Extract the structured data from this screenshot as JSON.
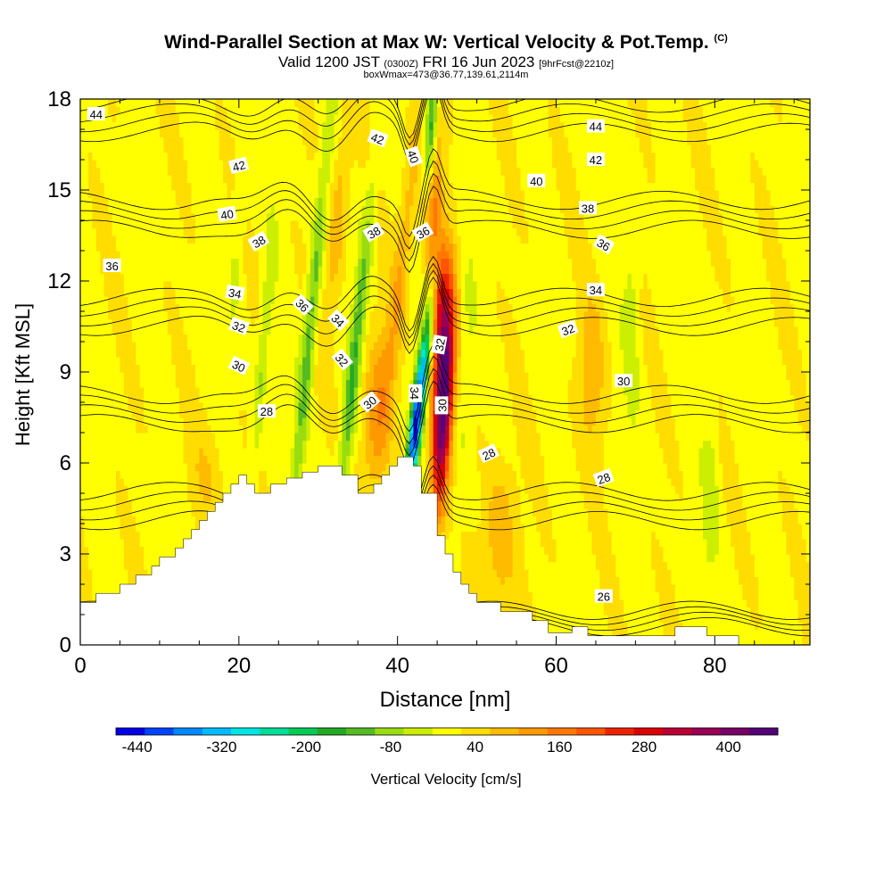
{
  "header": {
    "title": "Wind-Parallel Section at Max W: Vertical Velocity & Pot.Temp.",
    "title_mark": "(C)",
    "valid_prefix": "Valid 1200 JST",
    "valid_utc": "(0300Z)",
    "valid_date": "FRI 16 Jun 2023",
    "forecast": "[9hrFcst@2210z]",
    "boxinfo": "boxWmax=473@36.77,139.61,2114m"
  },
  "chart_data": {
    "type": "heatmap",
    "xlabel": "Distance [nm]",
    "ylabel": "Height [Kft MSL]",
    "xlim": [
      0,
      92
    ],
    "ylim": [
      0,
      18
    ],
    "x_ticks": [
      0,
      20,
      40,
      60,
      80
    ],
    "y_ticks": [
      0,
      3,
      6,
      9,
      12,
      15,
      18
    ],
    "colorbar": {
      "label": "Vertical Velocity [cm/s]",
      "tick_labels": [
        "-440",
        "-320",
        "-200",
        "-80",
        "40",
        "160",
        "280",
        "400"
      ],
      "tick_values": [
        -440,
        -320,
        -200,
        -80,
        40,
        160,
        280,
        400
      ],
      "range": [
        -470,
        470
      ],
      "colors": [
        "#0000e8",
        "#0044ff",
        "#0088ff",
        "#00bbff",
        "#00e6e6",
        "#00dd99",
        "#00cc55",
        "#22aa22",
        "#55bb22",
        "#99dd11",
        "#ccee00",
        "#ffff00",
        "#ffdd00",
        "#ffbb00",
        "#ff9900",
        "#ff7700",
        "#ff5500",
        "#ee2200",
        "#dd0000",
        "#bb0033",
        "#990055",
        "#770066",
        "#550077"
      ]
    },
    "background_w": 10,
    "terrain": [
      [
        0,
        1.4
      ],
      [
        2,
        1.4
      ],
      [
        2,
        1.7
      ],
      [
        5,
        1.7
      ],
      [
        5,
        2
      ],
      [
        7,
        2
      ],
      [
        7,
        2.3
      ],
      [
        9,
        2.3
      ],
      [
        9,
        2.6
      ],
      [
        10,
        2.6
      ],
      [
        10,
        2.9
      ],
      [
        12,
        2.9
      ],
      [
        12,
        3.2
      ],
      [
        13,
        3.2
      ],
      [
        13,
        3.5
      ],
      [
        14,
        3.5
      ],
      [
        14,
        3.8
      ],
      [
        15,
        3.8
      ],
      [
        15,
        4.1
      ],
      [
        16,
        4.1
      ],
      [
        16,
        4.4
      ],
      [
        17,
        4.4
      ],
      [
        17,
        4.7
      ],
      [
        18,
        4.7
      ],
      [
        18,
        5.0
      ],
      [
        19,
        5.0
      ],
      [
        19,
        5.3
      ],
      [
        20,
        5.3
      ],
      [
        20,
        5.6
      ],
      [
        21,
        5.6
      ],
      [
        21,
        5.3
      ],
      [
        22,
        5.3
      ],
      [
        22,
        5.0
      ],
      [
        24,
        5.0
      ],
      [
        24,
        5.3
      ],
      [
        26,
        5.3
      ],
      [
        26,
        5.5
      ],
      [
        28,
        5.5
      ],
      [
        28,
        5.7
      ],
      [
        30,
        5.7
      ],
      [
        30,
        5.9
      ],
      [
        33,
        5.9
      ],
      [
        33,
        5.6
      ],
      [
        35,
        5.6
      ],
      [
        35,
        5.0
      ],
      [
        37,
        5.0
      ],
      [
        37,
        5.3
      ],
      [
        38,
        5.3
      ],
      [
        38,
        5.6
      ],
      [
        39,
        5.6
      ],
      [
        39,
        5.9
      ],
      [
        40,
        5.9
      ],
      [
        40,
        6.2
      ],
      [
        42,
        6.2
      ],
      [
        42,
        5.9
      ],
      [
        43,
        5.9
      ],
      [
        43,
        5.0
      ],
      [
        45,
        5.0
      ],
      [
        45,
        3.6
      ],
      [
        46,
        3.6
      ],
      [
        46,
        3.0
      ],
      [
        47,
        3.0
      ],
      [
        47,
        2.4
      ],
      [
        48,
        2.4
      ],
      [
        48,
        2.0
      ],
      [
        49,
        2.0
      ],
      [
        49,
        1.7
      ],
      [
        50,
        1.7
      ],
      [
        50,
        1.4
      ],
      [
        53,
        1.4
      ],
      [
        53,
        1.1
      ],
      [
        57,
        1.1
      ],
      [
        57,
        0.8
      ],
      [
        59,
        0.8
      ],
      [
        59,
        0.4
      ],
      [
        62,
        0.4
      ],
      [
        62,
        0.6
      ],
      [
        64,
        0.6
      ],
      [
        64,
        0.3
      ],
      [
        68,
        0.3
      ],
      [
        68,
        0.3
      ],
      [
        75,
        0.3
      ],
      [
        75,
        0.6
      ],
      [
        79,
        0.6
      ],
      [
        79,
        0.3
      ],
      [
        83,
        0.3
      ],
      [
        83,
        0
      ],
      [
        92,
        0
      ]
    ],
    "w_features": [
      {
        "x": 45.8,
        "y": 8.0,
        "sx": 0.8,
        "sy": 2.4,
        "amp": 470,
        "tilt": 0.2
      },
      {
        "x": 45.3,
        "y": 11.0,
        "sx": 0.8,
        "sy": 1.8,
        "amp": 200,
        "tilt": 0.2
      },
      {
        "x": 44.6,
        "y": 14.5,
        "sx": 0.7,
        "sy": 2.0,
        "amp": 120,
        "tilt": 0.2
      },
      {
        "x": 42.5,
        "y": 7.6,
        "sx": 0.55,
        "sy": 2.4,
        "amp": -450,
        "tilt": 0.45
      },
      {
        "x": 44.2,
        "y": 17.0,
        "sx": 0.5,
        "sy": 1.3,
        "amp": -180,
        "tilt": 0.2
      },
      {
        "x": 34.6,
        "y": 9.5,
        "sx": 0.6,
        "sy": 4.0,
        "amp": -150,
        "tilt": 0.38
      },
      {
        "x": 29.0,
        "y": 10.5,
        "sx": 0.6,
        "sy": 4.2,
        "amp": -140,
        "tilt": 0.35
      },
      {
        "x": 23.0,
        "y": 9.5,
        "sx": 0.5,
        "sy": 3.0,
        "amp": -80,
        "tilt": 0.3
      },
      {
        "x": 37.2,
        "y": 7.6,
        "sx": 1.2,
        "sy": 2.0,
        "amp": 110,
        "tilt": 0.3
      },
      {
        "x": 40.5,
        "y": 12.5,
        "sx": 0.8,
        "sy": 4.0,
        "amp": 90,
        "tilt": 0.4
      },
      {
        "x": 32.5,
        "y": 14.0,
        "sx": 0.8,
        "sy": 3.0,
        "amp": 80,
        "tilt": 0.35
      },
      {
        "x": 53.0,
        "y": 3.5,
        "sx": 1.5,
        "sy": 1.8,
        "amp": 90,
        "tilt": 0.0
      },
      {
        "x": 64.5,
        "y": 9.0,
        "sx": 1.2,
        "sy": 1.8,
        "amp": 80,
        "tilt": 0.0
      },
      {
        "x": 48.5,
        "y": 8.5,
        "sx": 0.7,
        "sy": 3.0,
        "amp": -40,
        "tilt": 0.15
      },
      {
        "x": 69.5,
        "y": 11.0,
        "sx": 0.7,
        "sy": 3.0,
        "amp": -50,
        "tilt": 0.0
      },
      {
        "x": 79.5,
        "y": 5.0,
        "sx": 0.7,
        "sy": 2.0,
        "amp": -50,
        "tilt": 0.0
      },
      {
        "x": 16.0,
        "y": 5.5,
        "sx": 2.0,
        "sy": 1.2,
        "amp": 40,
        "tilt": 0.0
      },
      {
        "x": 20.0,
        "y": 14.0,
        "sx": 0.6,
        "sy": 3.0,
        "amp": -40,
        "tilt": 0.2
      }
    ],
    "theta_levels": [
      26,
      28,
      30,
      32,
      34,
      36,
      38,
      40,
      42,
      44
    ],
    "theta_labels": [
      {
        "text": "44",
        "x": 2,
        "y": 17.5,
        "rot": 0
      },
      {
        "text": "42",
        "x": 20,
        "y": 15.8,
        "rot": -15
      },
      {
        "text": "40",
        "x": 18.5,
        "y": 14.2,
        "rot": -10
      },
      {
        "text": "38",
        "x": 22.5,
        "y": 13.3,
        "rot": -30
      },
      {
        "text": "36",
        "x": 4,
        "y": 12.5,
        "rot": 0
      },
      {
        "text": "34",
        "x": 19.5,
        "y": 11.6,
        "rot": 10
      },
      {
        "text": "32",
        "x": 20,
        "y": 10.5,
        "rot": 20
      },
      {
        "text": "30",
        "x": 20,
        "y": 9.2,
        "rot": 25
      },
      {
        "text": "28",
        "x": 23.5,
        "y": 7.7,
        "rot": 0
      },
      {
        "text": "36",
        "x": 28,
        "y": 11.2,
        "rot": 45
      },
      {
        "text": "34",
        "x": 32.5,
        "y": 10.7,
        "rot": 45
      },
      {
        "text": "32",
        "x": 33,
        "y": 9.4,
        "rot": 50
      },
      {
        "text": "30",
        "x": 36.5,
        "y": 8.0,
        "rot": -40
      },
      {
        "text": "38",
        "x": 37,
        "y": 13.6,
        "rot": -30
      },
      {
        "text": "42",
        "x": 37.5,
        "y": 16.7,
        "rot": 20
      },
      {
        "text": "40",
        "x": 42,
        "y": 16.1,
        "rot": 70
      },
      {
        "text": "36",
        "x": 43.2,
        "y": 13.6,
        "rot": -30
      },
      {
        "text": "34",
        "x": 42.2,
        "y": 8.3,
        "rot": 90
      },
      {
        "text": "32",
        "x": 45.3,
        "y": 9.9,
        "rot": -80
      },
      {
        "text": "30",
        "x": 45.6,
        "y": 7.9,
        "rot": -90
      },
      {
        "text": "28",
        "x": 51.5,
        "y": 6.3,
        "rot": -25
      },
      {
        "text": "40",
        "x": 57.5,
        "y": 15.3,
        "rot": 0
      },
      {
        "text": "38",
        "x": 64,
        "y": 14.4,
        "rot": 0
      },
      {
        "text": "36",
        "x": 66,
        "y": 13.2,
        "rot": 30
      },
      {
        "text": "34",
        "x": 65,
        "y": 11.7,
        "rot": 0
      },
      {
        "text": "32",
        "x": 61.5,
        "y": 10.4,
        "rot": -20
      },
      {
        "text": "30",
        "x": 68.5,
        "y": 8.7,
        "rot": 0
      },
      {
        "text": "28",
        "x": 66,
        "y": 5.5,
        "rot": -20
      },
      {
        "text": "26",
        "x": 66,
        "y": 1.6,
        "rot": 0
      },
      {
        "text": "44",
        "x": 65,
        "y": 17.1,
        "rot": 0
      },
      {
        "text": "42",
        "x": 65,
        "y": 16.0,
        "rot": 0
      }
    ]
  }
}
